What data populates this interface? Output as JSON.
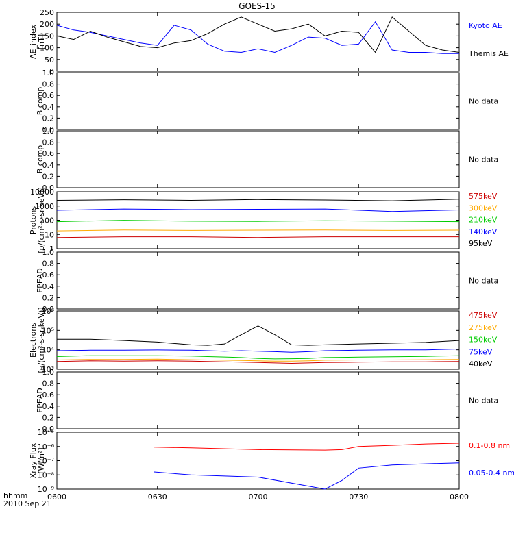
{
  "title": "GOES-15",
  "time_axis": {
    "ticks": [
      "0600",
      "0630",
      "0700",
      "0730",
      "0800"
    ],
    "left_label": "hhmm",
    "date_label": "2010 Sep 21"
  },
  "chart_data": [
    {
      "type": "line",
      "ylabel": "AE_index\n[nT]",
      "ylim": [
        0,
        250
      ],
      "yticks": [
        "0",
        "50",
        "100",
        "150",
        "200",
        "250"
      ],
      "x": [
        0,
        5,
        10,
        15,
        20,
        25,
        30,
        35,
        40,
        45,
        50,
        55,
        60,
        65,
        70,
        75,
        80,
        85,
        90,
        95,
        100,
        105,
        110,
        115,
        120
      ],
      "series": [
        {
          "name": "Kyoto AE",
          "color": "#0000ff",
          "values": [
            195,
            175,
            165,
            150,
            135,
            120,
            110,
            195,
            175,
            115,
            85,
            80,
            95,
            80,
            110,
            145,
            140,
            110,
            115,
            210,
            90,
            80,
            80,
            75,
            75
          ]
        },
        {
          "name": "Themis AE",
          "color": "#000000",
          "values": [
            150,
            135,
            170,
            145,
            125,
            105,
            100,
            120,
            130,
            160,
            200,
            230,
            200,
            170,
            180,
            200,
            150,
            170,
            165,
            80,
            230,
            170,
            110,
            90,
            80
          ]
        }
      ]
    },
    {
      "type": "line",
      "ylabel": "B comp",
      "ylim": [
        0,
        1
      ],
      "yticks": [
        "0.0",
        "0.2",
        "0.4",
        "0.6",
        "0.8",
        "1.0"
      ],
      "series": [],
      "note": "No data"
    },
    {
      "type": "line",
      "ylabel": "B comp",
      "ylim": [
        0,
        1
      ],
      "yticks": [
        "0.0",
        "0.2",
        "0.4",
        "0.6",
        "0.8",
        "1.0"
      ],
      "series": [],
      "note": "No data"
    },
    {
      "type": "line",
      "ylabel": "Protons\n[p/(cm²-s-sr-keV)]",
      "scale": "log",
      "ylim": [
        1,
        20000
      ],
      "yticks": [
        "1",
        "10",
        "100",
        "1000",
        "10000"
      ],
      "x": [
        0,
        20,
        40,
        60,
        80,
        100,
        120
      ],
      "series": [
        {
          "name": "575keV",
          "color": "#cc0000",
          "values": [
            7,
            8,
            8,
            7,
            8,
            8,
            8
          ]
        },
        {
          "name": "300keV",
          "color": "#ffaa00",
          "values": [
            22,
            26,
            24,
            25,
            26,
            24,
            25
          ]
        },
        {
          "name": "210keV",
          "color": "#00cc00",
          "values": [
            110,
            140,
            120,
            115,
            130,
            120,
            110
          ]
        },
        {
          "name": "140keV",
          "color": "#0000ff",
          "values": [
            800,
            1000,
            900,
            950,
            1000,
            650,
            850
          ]
        },
        {
          "name": "95keV",
          "color": "#000000",
          "values": [
            4500,
            5000,
            4500,
            5200,
            4800,
            4200,
            5500
          ]
        }
      ]
    },
    {
      "type": "line",
      "ylabel": "EPEAD",
      "ylim": [
        0,
        1
      ],
      "yticks": [
        "0.0",
        "0.2",
        "0.4",
        "0.6",
        "0.8",
        "1.0"
      ],
      "series": [],
      "note": "No data"
    },
    {
      "type": "line",
      "ylabel": "Electrons\n[e/(cm²-s-sr-keV)]",
      "scale": "log",
      "ylim": [
        1000,
        1000000
      ],
      "yticks": [
        "10³",
        "10⁴",
        "10⁵",
        "10⁶"
      ],
      "x": [
        0,
        10,
        20,
        30,
        40,
        45,
        50,
        55,
        60,
        65,
        70,
        75,
        80,
        90,
        100,
        110,
        120
      ],
      "series": [
        {
          "name": "475keV",
          "color": "#cc0000",
          "values": [
            2500,
            2700,
            2600,
            2700,
            2600,
            2500,
            2400,
            2300,
            2200,
            2100,
            2000,
            2100,
            2200,
            2300,
            2400,
            2400,
            2500
          ]
        },
        {
          "name": "275keV",
          "color": "#ffaa00",
          "values": [
            3000,
            3200,
            3200,
            3300,
            3100,
            3000,
            2900,
            2800,
            2700,
            2600,
            2600,
            2700,
            2900,
            3000,
            3000,
            3100,
            3200
          ]
        },
        {
          "name": "150keV",
          "color": "#00cc00",
          "values": [
            4500,
            5000,
            5000,
            5000,
            4800,
            4500,
            4300,
            4000,
            3600,
            3400,
            3500,
            3600,
            4000,
            4200,
            4400,
            4600,
            5000
          ]
        },
        {
          "name": "75keV",
          "color": "#0000ff",
          "values": [
            9000,
            9500,
            9500,
            9800,
            9500,
            9000,
            8500,
            9000,
            8500,
            8000,
            7500,
            8000,
            9000,
            9500,
            10000,
            10000,
            11000
          ]
        },
        {
          "name": "40keV",
          "color": "#000000",
          "values": [
            35000,
            35000,
            30000,
            25000,
            18000,
            17000,
            20000,
            60000,
            170000,
            60000,
            18000,
            17000,
            18000,
            20000,
            22000,
            24000,
            30000
          ]
        }
      ]
    },
    {
      "type": "line",
      "ylabel": "EPEAD",
      "ylim": [
        0,
        1
      ],
      "yticks": [
        "0.0",
        "0.2",
        "0.4",
        "0.6",
        "0.8",
        "1.0"
      ],
      "series": [],
      "note": "No data"
    },
    {
      "type": "line",
      "ylabel": "Xray Flux\n[W/m²]",
      "scale": "log",
      "ylim": [
        1e-09,
        1e-05
      ],
      "yticks": [
        "10⁻⁹",
        "10⁻⁸",
        "10⁻⁷",
        "10⁻⁶",
        "10⁻⁵"
      ],
      "x": [
        29,
        40,
        60,
        80,
        85,
        90,
        100,
        110,
        120
      ],
      "series": [
        {
          "name": "0.1-0.8 nm",
          "color": "#ff0000",
          "values": [
            9e-07,
            8e-07,
            6e-07,
            5.5e-07,
            6e-07,
            1e-06,
            1.2e-06,
            1.5e-06,
            1.7e-06
          ]
        },
        {
          "name": "0.05-0.4 nm",
          "color": "#0000ff",
          "values": [
            1.6e-08,
            1e-08,
            7e-09,
            1e-09,
            4e-09,
            3e-08,
            5e-08,
            6e-08,
            7e-08
          ]
        }
      ]
    }
  ]
}
